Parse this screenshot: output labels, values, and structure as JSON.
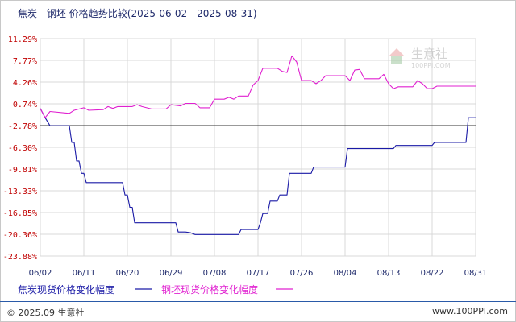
{
  "header": {
    "title": "焦炭 - 钢坯 价格趋势比较(2025-06-02 - 2025-08-31)"
  },
  "watermark": {
    "name": "生意社",
    "url": "100PPI.COM",
    "icon": "house-logo-icon"
  },
  "footer": {
    "copyright": "© 2025.09 生意社",
    "site": "www.100PPI.com"
  },
  "colors": {
    "series1": "#1a1aa6",
    "series2": "#e020d0",
    "grid": "#d8d8d8",
    "tick_y": "#c00000",
    "zero_line": "#333333"
  },
  "chart_data": {
    "type": "line",
    "title": "焦炭 - 钢坯 价格趋势比较(2025-06-02 - 2025-08-31)",
    "xlabel": "",
    "ylabel": "",
    "ylim": [
      -23.88,
      11.29
    ],
    "yticks": [
      "11.29%",
      "7.77%",
      "4.26%",
      "0.74%",
      "-2.78%",
      "-6.30%",
      "-9.81%",
      "-13.33%",
      "-16.85%",
      "-20.36%",
      "-23.88%"
    ],
    "yticks_values": [
      11.29,
      7.77,
      4.26,
      0.74,
      -2.78,
      -6.3,
      -9.81,
      -13.33,
      -16.85,
      -20.36,
      -23.88
    ],
    "xlim": [
      0,
      90
    ],
    "x_tick_labels": [
      "06/02",
      "06/11",
      "06/20",
      "06/29",
      "07/08",
      "07/17",
      "07/26",
      "08/04",
      "08/13",
      "08/22",
      "08/31"
    ],
    "x_tick_positions": [
      0,
      9,
      18,
      27,
      36,
      45,
      54,
      63,
      72,
      81,
      90
    ],
    "grid": true,
    "legend_position": "bottom-left",
    "series": [
      {
        "name": "焦炭现货价格变化幅度",
        "points": [
          [
            0,
            0
          ],
          [
            1,
            -1.5
          ],
          [
            2,
            -2.8
          ],
          [
            6,
            -2.8
          ],
          [
            6.5,
            -5.5
          ],
          [
            7,
            -5.5
          ],
          [
            7.5,
            -8.5
          ],
          [
            8,
            -8.5
          ],
          [
            8.5,
            -10.5
          ],
          [
            9,
            -10.5
          ],
          [
            9.5,
            -12
          ],
          [
            16,
            -12
          ],
          [
            17,
            -12
          ],
          [
            17.5,
            -14
          ],
          [
            18,
            -14
          ],
          [
            18.5,
            -16
          ],
          [
            19,
            -16
          ],
          [
            19.5,
            -18.5
          ],
          [
            27,
            -18.5
          ],
          [
            28,
            -18.5
          ],
          [
            28.5,
            -20
          ],
          [
            30,
            -20
          ],
          [
            31,
            -20.1
          ],
          [
            32,
            -20.4
          ],
          [
            40,
            -20.4
          ],
          [
            41,
            -20.4
          ],
          [
            41.5,
            -19.6
          ],
          [
            45,
            -19.6
          ],
          [
            45.5,
            -18.5
          ],
          [
            46,
            -17
          ],
          [
            47,
            -17
          ],
          [
            47.5,
            -15
          ],
          [
            49,
            -15
          ],
          [
            49.5,
            -14
          ],
          [
            51,
            -14
          ],
          [
            51.5,
            -10.5
          ],
          [
            54,
            -10.5
          ],
          [
            56,
            -10.5
          ],
          [
            56.5,
            -9.5
          ],
          [
            63,
            -9.5
          ],
          [
            63.5,
            -6.5
          ],
          [
            73,
            -6.5
          ],
          [
            73.5,
            -6
          ],
          [
            81,
            -6
          ],
          [
            81.5,
            -5.5
          ],
          [
            88,
            -5.5
          ],
          [
            88.5,
            -1.5
          ],
          [
            90,
            -1.5
          ]
        ]
      },
      {
        "name": "钢坯现货价格变化幅度",
        "points": [
          [
            0,
            0
          ],
          [
            1,
            -1.5
          ],
          [
            2,
            -0.5
          ],
          [
            6,
            -0.8
          ],
          [
            7,
            -0.3
          ],
          [
            9,
            0.1
          ],
          [
            10,
            -0.3
          ],
          [
            13,
            -0.2
          ],
          [
            14,
            0.3
          ],
          [
            15,
            0
          ],
          [
            16,
            0.3
          ],
          [
            19,
            0.3
          ],
          [
            20,
            0.6
          ],
          [
            21,
            0.3
          ],
          [
            23,
            -0.1
          ],
          [
            26,
            -0.1
          ],
          [
            27,
            0.6
          ],
          [
            29,
            0.4
          ],
          [
            30,
            0.8
          ],
          [
            32,
            0.8
          ],
          [
            33,
            0.1
          ],
          [
            35,
            0.1
          ],
          [
            36,
            1.5
          ],
          [
            38,
            1.5
          ],
          [
            39,
            1.8
          ],
          [
            40,
            1.5
          ],
          [
            41,
            2
          ],
          [
            43,
            2
          ],
          [
            44,
            3.8
          ],
          [
            45,
            4.5
          ],
          [
            46,
            6.5
          ],
          [
            49,
            6.5
          ],
          [
            50,
            6
          ],
          [
            51,
            5.8
          ],
          [
            52,
            8.5
          ],
          [
            53,
            7.5
          ],
          [
            54,
            4.5
          ],
          [
            56,
            4.5
          ],
          [
            57,
            4
          ],
          [
            58,
            4.5
          ],
          [
            59,
            5.3
          ],
          [
            63,
            5.3
          ],
          [
            64,
            4.5
          ],
          [
            65,
            6.2
          ],
          [
            66,
            6.3
          ],
          [
            67,
            4.8
          ],
          [
            70,
            4.8
          ],
          [
            71,
            5.5
          ],
          [
            72,
            4
          ],
          [
            73,
            3.2
          ],
          [
            74,
            3.5
          ],
          [
            77,
            3.5
          ],
          [
            78,
            4.5
          ],
          [
            79,
            4
          ],
          [
            80,
            3.2
          ],
          [
            81,
            3.2
          ],
          [
            82,
            3.6
          ],
          [
            90,
            3.6
          ]
        ]
      }
    ]
  }
}
